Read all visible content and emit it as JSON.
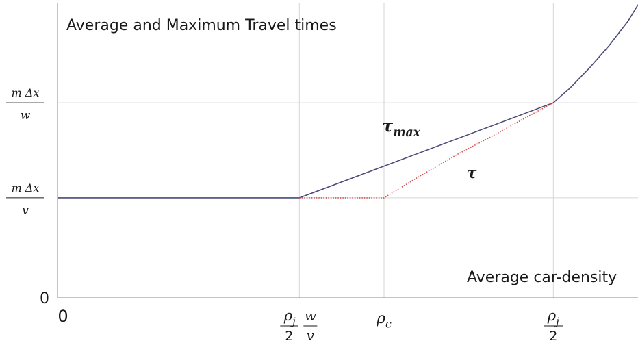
{
  "chart_data": {
    "type": "line",
    "title": "Average and Maximum Travel times",
    "xlabel": "Average car-density",
    "ylabel": "",
    "x_ticks": [
      {
        "id": "zero",
        "label": "0",
        "x": 0
      },
      {
        "id": "rjwv",
        "num": "ρ",
        "num_sub": "j",
        "den": "2",
        "frac_num": "w",
        "frac_den": "v",
        "x": 1
      },
      {
        "id": "rc",
        "num": "ρ",
        "num_sub": "c",
        "x": 1.35
      },
      {
        "id": "rj2",
        "num": "ρ",
        "num_sub": "j",
        "den": "2",
        "x": 2.05
      }
    ],
    "y_ticks": [
      {
        "id": "zero",
        "label": "0",
        "y": 0
      },
      {
        "id": "mdxv",
        "num": "m Δx",
        "den": "v",
        "y": 1
      },
      {
        "id": "mdxw",
        "num": "m Δx",
        "den": "w",
        "y": 1.95
      }
    ],
    "xlim": [
      0,
      2.4
    ],
    "ylim": [
      0,
      2.95
    ],
    "grid": true,
    "series": [
      {
        "name": "τmax",
        "label_main": "τ",
        "label_sub": "max",
        "style": "solid",
        "color": "#4a4a78",
        "x": [
          0,
          1,
          2.05,
          2.12,
          2.2,
          2.28,
          2.36,
          2.4
        ],
        "y": [
          1,
          1,
          1.95,
          2.1,
          2.3,
          2.52,
          2.77,
          2.93
        ]
      },
      {
        "name": "τ",
        "label_main": "τ",
        "style": "dotted",
        "color": "#d45050",
        "x": [
          1,
          1.35,
          1.5,
          1.65,
          1.8,
          1.95,
          2.05
        ],
        "y": [
          1,
          1,
          1.22,
          1.43,
          1.62,
          1.82,
          1.95
        ]
      }
    ]
  }
}
